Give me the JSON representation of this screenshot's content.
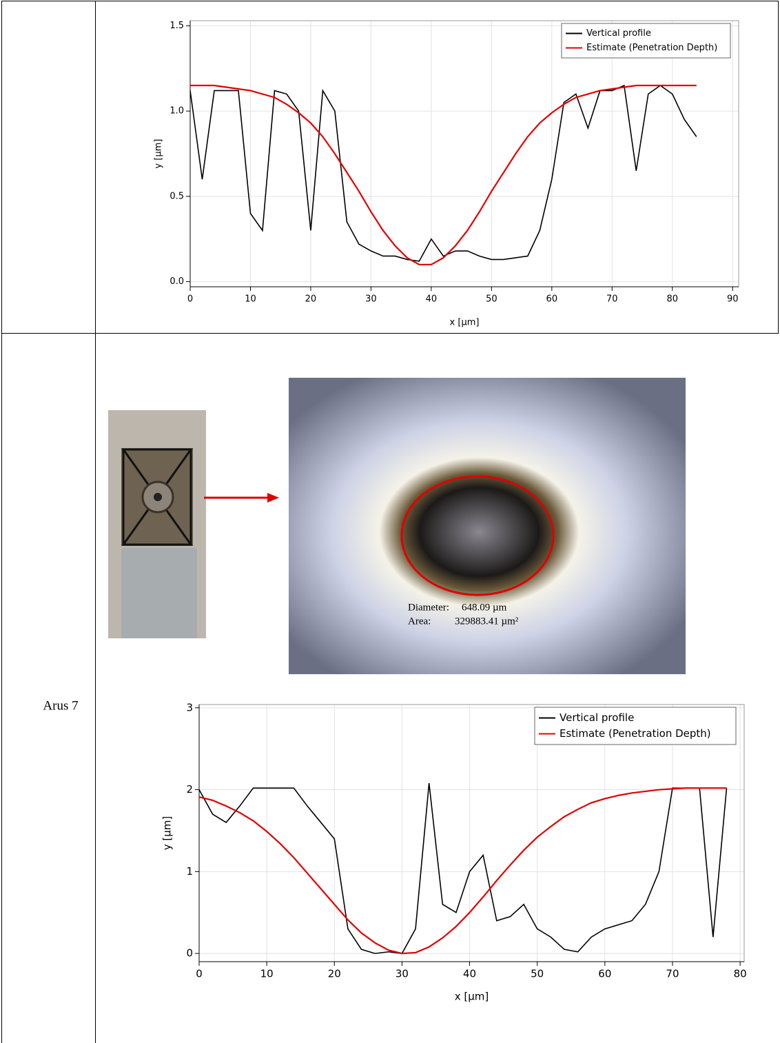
{
  "table": {
    "label": "Arus 7"
  },
  "micrograph": {
    "diameter_label": "Diameter:",
    "diameter": "648.09 µm",
    "area_label": "Area:",
    "area": "329883.41 µm²"
  },
  "chart_data": [
    {
      "type": "line",
      "x_label": "x [µm]",
      "y_label": "y [µm]",
      "grid": true,
      "legend": "upper right",
      "x": [
        0,
        2,
        4,
        6,
        8,
        10,
        12,
        14,
        16,
        18,
        20,
        22,
        24,
        26,
        28,
        30,
        32,
        34,
        36,
        38,
        40,
        42,
        44,
        46,
        48,
        50,
        52,
        54,
        56,
        58,
        60,
        62,
        64,
        66,
        68,
        70,
        72,
        74,
        76,
        78,
        80,
        82,
        84
      ],
      "series": [
        {
          "name": "Vertical profile",
          "color": "#000000",
          "values": [
            1.12,
            0.6,
            1.12,
            1.12,
            1.12,
            0.4,
            0.3,
            1.12,
            1.1,
            1.0,
            0.3,
            1.12,
            1.0,
            0.35,
            0.22,
            0.18,
            0.15,
            0.15,
            0.13,
            0.12,
            0.25,
            0.15,
            0.18,
            0.18,
            0.15,
            0.13,
            0.13,
            0.14,
            0.15,
            0.3,
            0.6,
            1.05,
            1.1,
            0.9,
            1.12,
            1.12,
            1.15,
            0.65,
            1.1,
            1.15,
            1.1,
            0.95,
            0.85
          ]
        },
        {
          "name": "Estimate (Penetration Depth)",
          "color": "#e00000",
          "values": [
            1.15,
            1.15,
            1.15,
            1.14,
            1.13,
            1.12,
            1.1,
            1.08,
            1.04,
            0.99,
            0.93,
            0.85,
            0.75,
            0.64,
            0.53,
            0.41,
            0.3,
            0.21,
            0.14,
            0.1,
            0.1,
            0.14,
            0.21,
            0.3,
            0.41,
            0.53,
            0.64,
            0.75,
            0.85,
            0.93,
            0.99,
            1.04,
            1.08,
            1.1,
            1.12,
            1.13,
            1.14,
            1.15,
            1.15,
            1.15,
            1.15,
            1.15,
            1.15
          ]
        }
      ],
      "xlim": [
        0,
        91
      ],
      "xticks": [
        0,
        10,
        20,
        30,
        40,
        50,
        60,
        70,
        80,
        90
      ],
      "ylim": [
        -0.03,
        1.53
      ],
      "yticks": [
        {
          "value": 0,
          "label": "0.0"
        },
        0.5,
        {
          "value": 1,
          "label": "1.0"
        },
        1.5
      ]
    },
    {
      "type": "line",
      "x_label": "x [µm]",
      "y_label": "y [µm]",
      "grid": true,
      "legend": "upper right",
      "x": [
        0,
        2,
        4,
        6,
        8,
        10,
        12,
        14,
        16,
        18,
        20,
        22,
        24,
        26,
        28,
        30,
        32,
        34,
        36,
        38,
        40,
        42,
        44,
        46,
        48,
        50,
        52,
        54,
        56,
        58,
        60,
        62,
        64,
        66,
        68,
        70,
        72,
        74,
        76,
        78
      ],
      "series": [
        {
          "name": "Vertical profile",
          "color": "#000000",
          "values": [
            2.0,
            1.7,
            1.6,
            1.8,
            2.02,
            2.02,
            2.02,
            2.02,
            1.8,
            1.6,
            1.4,
            0.3,
            0.05,
            0.0,
            0.02,
            0.0,
            0.3,
            2.08,
            0.6,
            0.5,
            1.0,
            1.2,
            0.4,
            0.45,
            0.6,
            0.3,
            0.2,
            0.05,
            0.02,
            0.2,
            0.3,
            0.35,
            0.4,
            0.6,
            1.0,
            2.02,
            2.02,
            2.02,
            0.2,
            2.02
          ]
        },
        {
          "name": "Estimate (Penetration Depth)",
          "color": "#e00000",
          "values": [
            1.91,
            1.87,
            1.8,
            1.72,
            1.62,
            1.49,
            1.34,
            1.17,
            0.98,
            0.79,
            0.6,
            0.41,
            0.25,
            0.13,
            0.04,
            0.0,
            0.01,
            0.08,
            0.19,
            0.33,
            0.5,
            0.69,
            0.89,
            1.08,
            1.26,
            1.42,
            1.55,
            1.67,
            1.76,
            1.84,
            1.89,
            1.93,
            1.96,
            1.98,
            2.0,
            2.01,
            2.02,
            2.02,
            2.02,
            2.02
          ]
        }
      ],
      "xlim": [
        0,
        80.6
      ],
      "xticks": [
        0,
        10,
        20,
        30,
        40,
        50,
        60,
        70,
        80
      ],
      "ylim": [
        -0.1,
        3.04
      ],
      "yticks": [
        0,
        1,
        2,
        3
      ]
    }
  ]
}
